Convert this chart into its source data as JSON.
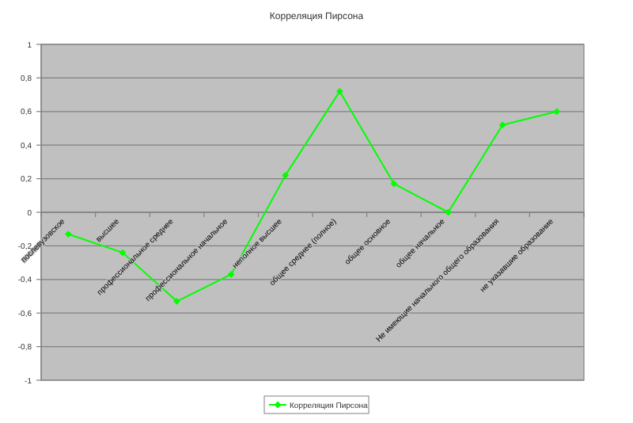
{
  "chart_data": {
    "type": "line",
    "title": "Корреляция Пирсона",
    "categories": [
      "послевузовское",
      "высшее",
      "профессиональное среднее",
      "профессиональное начальное",
      "неполное высшее",
      "общее среднее (полное)",
      "общее основное",
      "общее начальное",
      "Не имеющие начального общего образования",
      "не указавшие образование"
    ],
    "series": [
      {
        "name": "Корреляция Пирсона",
        "color": "#00ff00",
        "values": [
          -0.13,
          -0.24,
          -0.53,
          -0.37,
          0.22,
          0.72,
          0.17,
          0,
          0.52,
          0.6
        ]
      }
    ],
    "ylim": [
      -1,
      1
    ],
    "yticks": [
      -1,
      {
        "value": -0.8,
        "label": "-0,8"
      },
      {
        "value": -0.6,
        "label": "-0,6"
      },
      {
        "value": -0.4,
        "label": "-0,4"
      },
      {
        "value": -0.2,
        "label": "-0,2"
      },
      0,
      {
        "value": 0.2,
        "label": "0,2"
      },
      {
        "value": 0.4,
        "label": "0,4"
      },
      {
        "value": 0.6,
        "label": "0,6"
      },
      {
        "value": 0.8,
        "label": "0,8"
      },
      1
    ],
    "grid": "y",
    "legend": "bottom",
    "marker": "diamond",
    "line_style": "solid"
  }
}
